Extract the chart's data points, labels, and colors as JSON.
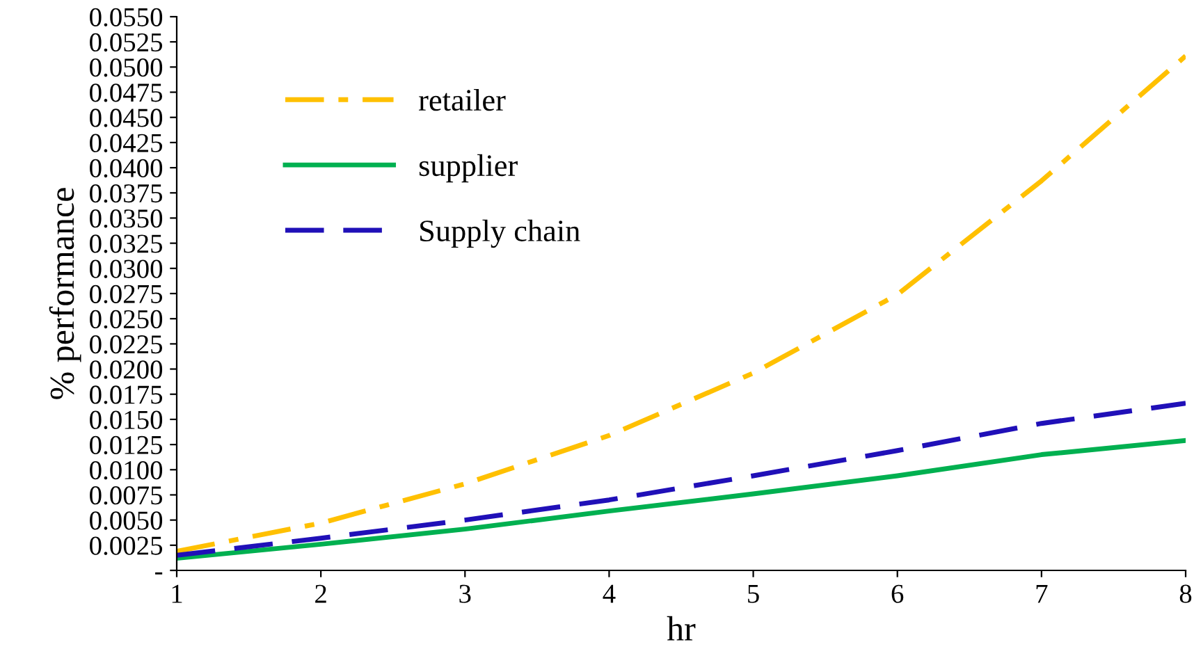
{
  "chart_data": {
    "type": "line",
    "xlabel": "hr",
    "ylabel": "% performance",
    "x": [
      1,
      2,
      3,
      4,
      5,
      6,
      7,
      8
    ],
    "series": [
      {
        "name": "retailer",
        "color": "#ffc000",
        "line_style": "dashdot",
        "values": [
          0.0019,
          0.0047,
          0.0086,
          0.0134,
          0.0196,
          0.0274,
          0.0387,
          0.0511
        ]
      },
      {
        "name": "supplier",
        "color": "#00b050",
        "line_style": "solid",
        "values": [
          0.0012,
          0.0026,
          0.0041,
          0.0059,
          0.0076,
          0.0094,
          0.0115,
          0.0129
        ]
      },
      {
        "name": "Supply chain",
        "color": "#2010b8",
        "line_style": "dashed",
        "values": [
          0.0015,
          0.0032,
          0.005,
          0.007,
          0.0094,
          0.0119,
          0.0146,
          0.0166
        ]
      }
    ],
    "xlim": [
      1,
      8
    ],
    "xticks": [
      1,
      2,
      3,
      4,
      5,
      6,
      7,
      8
    ],
    "ylim": [
      0,
      0.055
    ],
    "yticks": [
      {
        "value": 0,
        "label": "-"
      },
      {
        "value": 0.0025,
        "label": "0.0025"
      },
      {
        "value": 0.005,
        "label": "0.0050"
      },
      {
        "value": 0.0075,
        "label": "0.0075"
      },
      {
        "value": 0.01,
        "label": "0.0100"
      },
      {
        "value": 0.0125,
        "label": "0.0125"
      },
      {
        "value": 0.015,
        "label": "0.0150"
      },
      {
        "value": 0.0175,
        "label": "0.0175"
      },
      {
        "value": 0.02,
        "label": "0.0200"
      },
      {
        "value": 0.0225,
        "label": "0.0225"
      },
      {
        "value": 0.025,
        "label": "0.0250"
      },
      {
        "value": 0.0275,
        "label": "0.0275"
      },
      {
        "value": 0.03,
        "label": "0.0300"
      },
      {
        "value": 0.0325,
        "label": "0.0325"
      },
      {
        "value": 0.035,
        "label": "0.0350"
      },
      {
        "value": 0.0375,
        "label": "0.0375"
      },
      {
        "value": 0.04,
        "label": "0.0400"
      },
      {
        "value": 0.0425,
        "label": "0.0425"
      },
      {
        "value": 0.045,
        "label": "0.0450"
      },
      {
        "value": 0.0475,
        "label": "0.0475"
      },
      {
        "value": 0.05,
        "label": "0.0500"
      },
      {
        "value": 0.0525,
        "label": "0.0525"
      },
      {
        "value": 0.055,
        "label": "0.0550"
      }
    ],
    "grid": false,
    "legend": "top left",
    "marker": "none"
  }
}
